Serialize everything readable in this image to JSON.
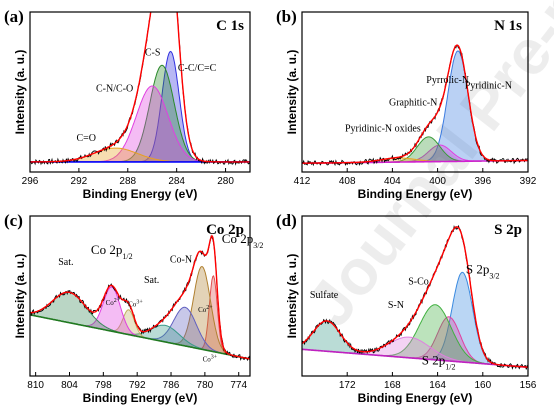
{
  "watermark": "Journal Pre-proofs",
  "colors": {
    "raw": "#000000",
    "envelope": "#ff0000",
    "background": "#0000ff",
    "background_b": "#d020d0",
    "background_d": "#c020c0",
    "baseline_c": "#207a20"
  },
  "chart_data": [
    {
      "id": "a",
      "letter": "(a)",
      "title": "C 1s",
      "type": "line",
      "xlabel": "Binding Energy (eV)",
      "ylabel": "Intensity (a. u.)",
      "xlim": [
        296,
        278
      ],
      "xticks": [
        296,
        292,
        288,
        284,
        280
      ],
      "reversed_x": true,
      "series": [
        {
          "name": "C-C/C=C",
          "center": 284.5,
          "width": 0.7,
          "height": 0.8,
          "color": "#3030e0"
        },
        {
          "name": "C-S",
          "center": 285.2,
          "width": 1.0,
          "height": 0.7,
          "color": "#2a8a2a"
        },
        {
          "name": "C-N/C-O",
          "center": 286.0,
          "width": 1.3,
          "height": 0.55,
          "color": "#e040e0"
        },
        {
          "name": "C=O",
          "center": 289.0,
          "width": 1.8,
          "height": 0.1,
          "color": "#e8a020"
        }
      ],
      "background": {
        "left": 0.03,
        "right": 0.03
      },
      "labels": [
        {
          "text": "C-S",
          "at": [
            286.6,
            0.8
          ]
        },
        {
          "text": "C-C/C=C",
          "at": [
            283.9,
            0.69
          ]
        },
        {
          "text": "C-N/C-O",
          "at": [
            290.6,
            0.54
          ]
        },
        {
          "text": "C=O",
          "at": [
            292.2,
            0.18
          ]
        }
      ]
    },
    {
      "id": "b",
      "letter": "(b)",
      "title": "N 1s",
      "type": "line",
      "xlabel": "Binding Energy (eV)",
      "ylabel": "Intensity (a. u.)",
      "xlim": [
        412,
        392
      ],
      "xticks": [
        412,
        408,
        404,
        400,
        396,
        392
      ],
      "reversed_x": true,
      "series": [
        {
          "name": "Pyridinic-N",
          "center": 398.2,
          "width": 0.9,
          "height": 0.8,
          "color": "#3a7ae0"
        },
        {
          "name": "Pyrrolic-N",
          "center": 399.8,
          "width": 1.0,
          "height": 0.12,
          "color": "#e040e0"
        },
        {
          "name": "Graphitic-N",
          "center": 400.8,
          "width": 1.0,
          "height": 0.18,
          "color": "#3a9a3a"
        },
        {
          "name": "Pyridinic-N oxides",
          "center": 403.5,
          "width": 1.5,
          "height": 0.03,
          "color": "#e8a020"
        }
      ],
      "background": {
        "left": 0.02,
        "right": 0.04
      },
      "labels": [
        {
          "text": "Pyrrolic-N",
          "at": [
            401.0,
            0.6
          ]
        },
        {
          "text": "Pyridinic-N",
          "at": [
            397.6,
            0.56
          ]
        },
        {
          "text": "Graphitic-N",
          "at": [
            404.3,
            0.44
          ]
        },
        {
          "text": "Pyridinic-N oxides",
          "at": [
            408.2,
            0.25
          ]
        }
      ]
    },
    {
      "id": "c",
      "letter": "(c)",
      "title": "Co 2p",
      "type": "line",
      "xlabel": "Binding Energy (eV)",
      "ylabel": "Intensity (a. u.)",
      "xlim": [
        811,
        772
      ],
      "xticks": [
        810,
        804,
        798,
        792,
        786,
        780,
        774
      ],
      "reversed_x": true,
      "series": [
        {
          "name": "Co 2p3/2 Co3+",
          "center": 778.5,
          "width": 0.7,
          "height": 0.55,
          "color": "#e05050"
        },
        {
          "name": "Co 2p3/2 Co2+",
          "center": 780.5,
          "width": 1.5,
          "height": 0.6,
          "color": "#b08030"
        },
        {
          "name": "Co-N",
          "center": 783.5,
          "width": 2.0,
          "height": 0.28,
          "color": "#6060c0"
        },
        {
          "name": "Sat.",
          "center": 787.0,
          "width": 2.5,
          "height": 0.12,
          "color": "#3a9a8a"
        },
        {
          "name": "Co 2p1/2 Co3+",
          "center": 793.5,
          "width": 1.0,
          "height": 0.18,
          "color": "#c0b060"
        },
        {
          "name": "Co 2p1/2 Co2+",
          "center": 796.5,
          "width": 1.5,
          "height": 0.32,
          "color": "#e040e0"
        },
        {
          "name": "Sat.",
          "center": 804.0,
          "width": 3.0,
          "height": 0.22,
          "color": "#3a8a5a"
        }
      ],
      "background": {
        "left": 0.4,
        "right": 0.08
      },
      "labels": [
        {
          "text": "Co 2p",
          "sub": "3/2",
          "at": [
            777.0,
            0.92
          ]
        },
        {
          "text": "Co 2p",
          "sub": "1/2",
          "at": [
            800.2,
            0.84
          ]
        },
        {
          "text": "Co-N",
          "at": [
            786.2,
            0.78
          ]
        },
        {
          "text": "Sat.",
          "at": [
            806.0,
            0.76
          ]
        },
        {
          "text": "Sat.",
          "at": [
            790.8,
            0.63
          ]
        },
        {
          "text": "Co",
          "sup": "2+",
          "at": [
            797.6,
            0.47
          ]
        },
        {
          "text": "Co",
          "sup": "3+",
          "at": [
            793.6,
            0.46
          ]
        },
        {
          "text": "Co",
          "sup": "2+",
          "at": [
            781.2,
            0.42
          ]
        },
        {
          "text": "Co",
          "sup": "3+",
          "at": [
            780.4,
            0.06
          ]
        }
      ]
    },
    {
      "id": "d",
      "letter": "(d)",
      "title": "S 2p",
      "type": "line",
      "xlabel": "Binding Energy (eV)",
      "ylabel": "Intensity (a. u.)",
      "xlim": [
        176,
        156
      ],
      "xticks": [
        172,
        168,
        164,
        160,
        156
      ],
      "reversed_x": true,
      "series": [
        {
          "name": "S 2p3/2",
          "center": 161.8,
          "width": 0.9,
          "height": 0.65,
          "color": "#3a8ae0"
        },
        {
          "name": "S 2p1/2",
          "center": 163.0,
          "width": 1.0,
          "height": 0.32,
          "color": "#e040a0"
        },
        {
          "name": "S-Co",
          "center": 164.2,
          "width": 1.4,
          "height": 0.4,
          "color": "#40b040"
        },
        {
          "name": "S-N",
          "center": 166.5,
          "width": 1.8,
          "height": 0.15,
          "color": "#e080e0"
        },
        {
          "name": "Sulfate",
          "center": 173.8,
          "width": 1.2,
          "height": 0.22,
          "color": "#3a9a8a"
        }
      ],
      "background": {
        "left": 0.15,
        "right": 0.02
      },
      "labels": [
        {
          "text": "Sulfate",
          "at": [
            175.3,
            0.52
          ]
        },
        {
          "text": "S-Co",
          "at": [
            166.6,
            0.62
          ]
        },
        {
          "text": "S-N",
          "at": [
            168.4,
            0.45
          ]
        },
        {
          "text": "S 2p",
          "sub": "3/2",
          "at": [
            161.5,
            0.7
          ]
        },
        {
          "text": "S 2p",
          "sub": "1/2",
          "at": [
            165.4,
            0.04
          ]
        }
      ]
    }
  ]
}
